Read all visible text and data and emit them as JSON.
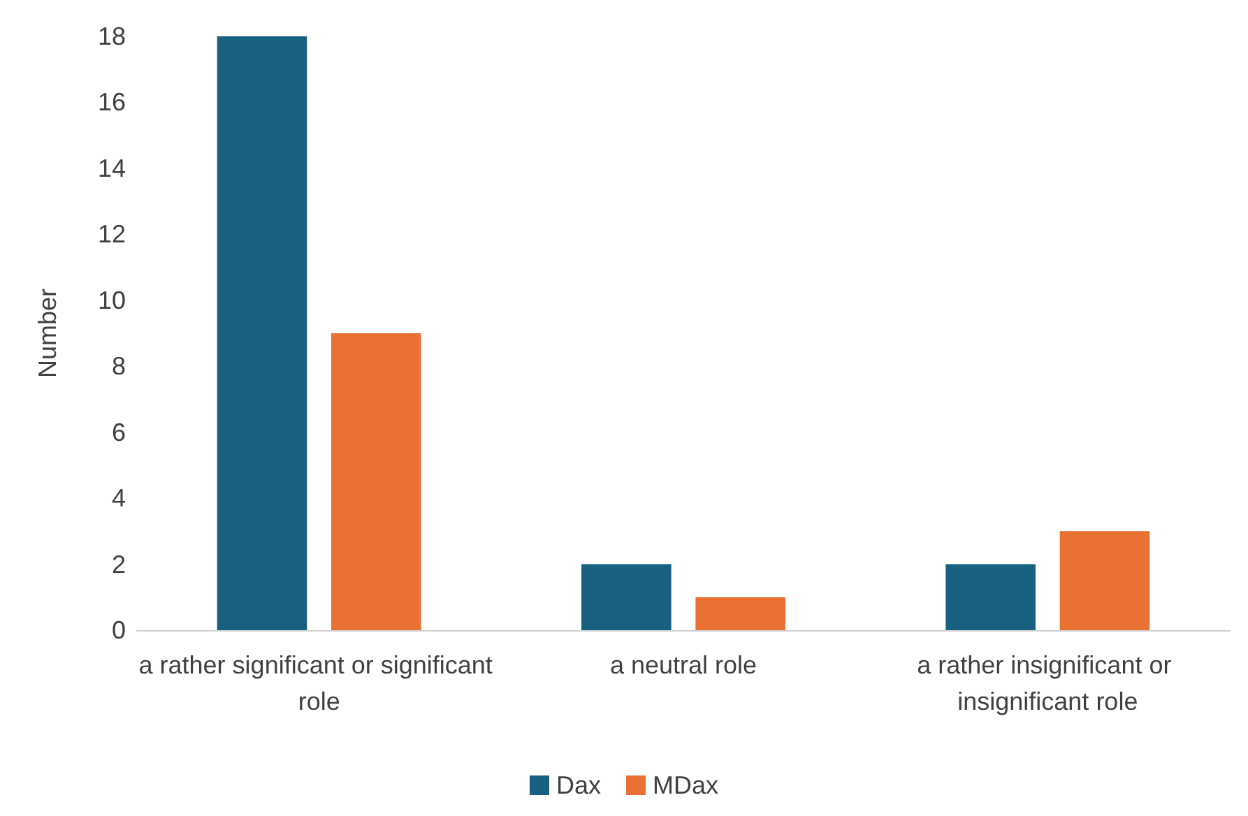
{
  "chart_data": {
    "type": "bar",
    "ylabel": "Number",
    "categories": [
      "a rather significant or significant role",
      "a neutral role",
      "a rather insignificant or insignificant role"
    ],
    "series": [
      {
        "name": "Dax",
        "color": "#17607f",
        "values": [
          18,
          2,
          2
        ]
      },
      {
        "name": "MDax",
        "color": "#e97132",
        "values": [
          9,
          1,
          3
        ]
      }
    ],
    "ylim": [
      0,
      18
    ],
    "yticks": [
      0,
      2,
      4,
      6,
      8,
      10,
      12,
      14,
      16,
      18
    ],
    "grid": false,
    "legend": "bottom"
  }
}
